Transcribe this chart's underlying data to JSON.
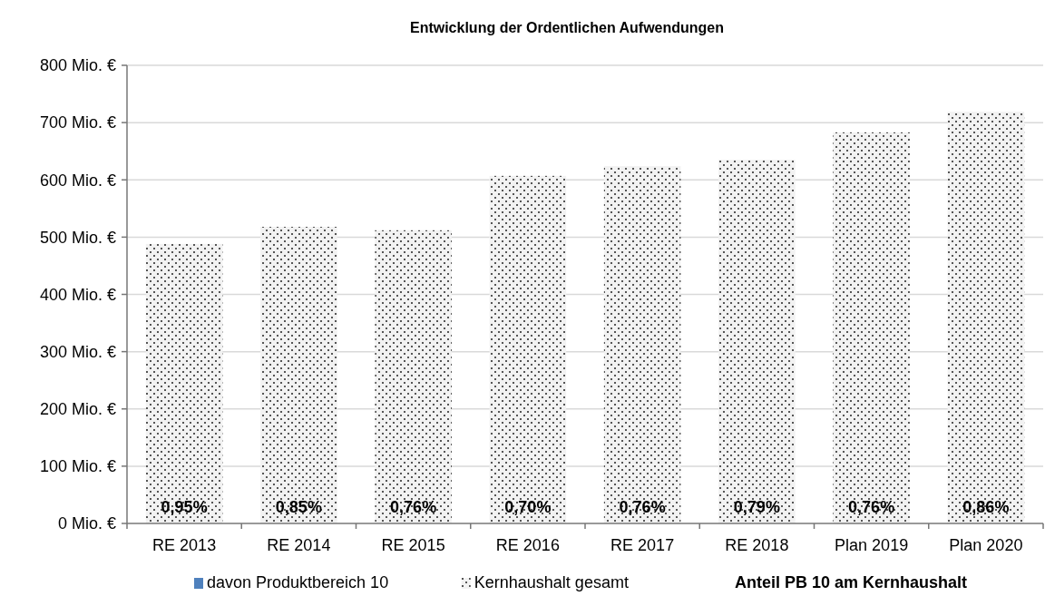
{
  "chart_data": {
    "type": "bar",
    "title": "Entwicklung der Ordentlichen Aufwendungen",
    "categories": [
      "RE 2013",
      "RE 2014",
      "RE 2015",
      "RE 2016",
      "RE 2017",
      "RE 2018",
      "Plan 2019",
      "Plan 2020"
    ],
    "series": [
      {
        "name": "davon Produktbereich 10",
        "color": "#4f81bd",
        "values": [
          null,
          null,
          null,
          null,
          null,
          null,
          null,
          null
        ],
        "value_labels": [
          "0,95%",
          "0,85%",
          "0,76%",
          "0,70%",
          "0,76%",
          "0,79%",
          "0,76%",
          "0,86%"
        ]
      },
      {
        "name": "Kernhaushalt gesamt",
        "color": "#f2f2f2",
        "values": [
          488,
          518,
          512,
          607,
          624,
          635,
          683,
          719
        ]
      }
    ],
    "ylim": [
      0,
      800
    ],
    "yticks": [
      {
        "value": 0,
        "label": "0 Mio. €"
      },
      {
        "value": 100,
        "label": "100 Mio. €"
      },
      {
        "value": 200,
        "label": "200 Mio. €"
      },
      {
        "value": 300,
        "label": "300 Mio. €"
      },
      {
        "value": 400,
        "label": "400 Mio. €"
      },
      {
        "value": 500,
        "label": "500 Mio. €"
      },
      {
        "value": 600,
        "label": "600 Mio. €"
      },
      {
        "value": 700,
        "label": "700 Mio. €"
      },
      {
        "value": 800,
        "label": "800 Mio. €"
      }
    ],
    "grid": "y",
    "legend": "bottom",
    "annotations": [
      "Anteil PB 10 am Kernhaushalt"
    ]
  }
}
